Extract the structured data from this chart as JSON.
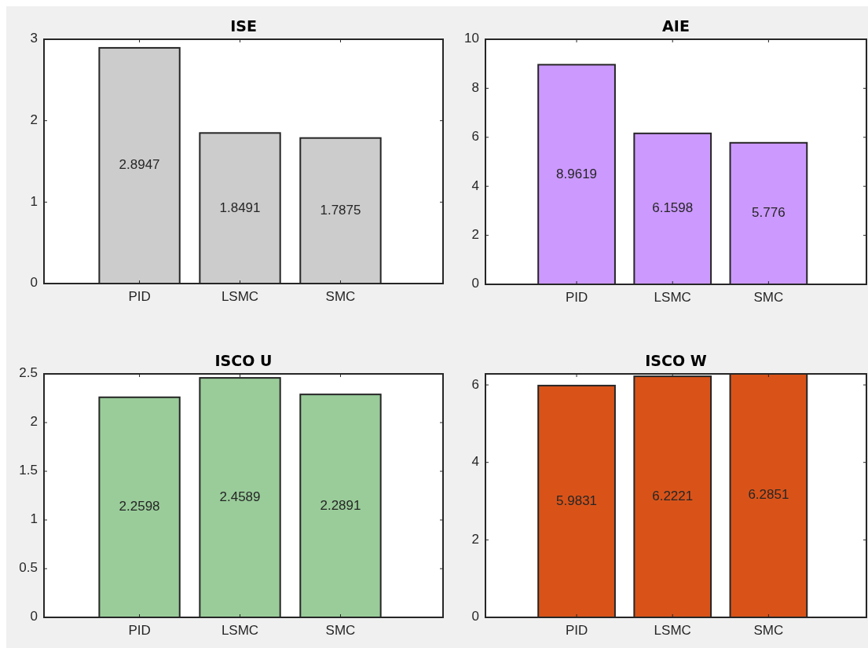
{
  "chart_data": [
    {
      "type": "bar",
      "title": "ISE",
      "categories": [
        "PID",
        "LSMC",
        "SMC"
      ],
      "values": [
        2.8947,
        1.8491,
        1.7875
      ],
      "color": "#cccccc",
      "ylim": [
        0,
        3
      ],
      "yticks": [
        0,
        1,
        2,
        3
      ],
      "data_labels": true
    },
    {
      "type": "bar",
      "title": "AIE",
      "categories": [
        "PID",
        "LSMC",
        "SMC"
      ],
      "values": [
        8.9619,
        6.1598,
        5.776
      ],
      "color": "#cc99ff",
      "ylim": [
        0,
        10
      ],
      "yticks": [
        0,
        2,
        4,
        6,
        8,
        10
      ],
      "data_labels": true
    },
    {
      "type": "bar",
      "title": "ISCO U",
      "categories": [
        "PID",
        "LSMC",
        "SMC"
      ],
      "values": [
        2.2598,
        2.4589,
        2.2891
      ],
      "color": "#99cc99",
      "ylim": [
        0,
        2.5
      ],
      "yticks": [
        0,
        0.5,
        1,
        1.5,
        2,
        2.5
      ],
      "data_labels": true
    },
    {
      "type": "bar",
      "title": "ISCO W",
      "categories": [
        "PID",
        "LSMC",
        "SMC"
      ],
      "values": [
        5.9831,
        6.2221,
        6.2851
      ],
      "color": "#d95319",
      "ylim": [
        0,
        6.2851
      ],
      "yticks": [
        0,
        2,
        4,
        6
      ],
      "data_labels": true
    }
  ]
}
